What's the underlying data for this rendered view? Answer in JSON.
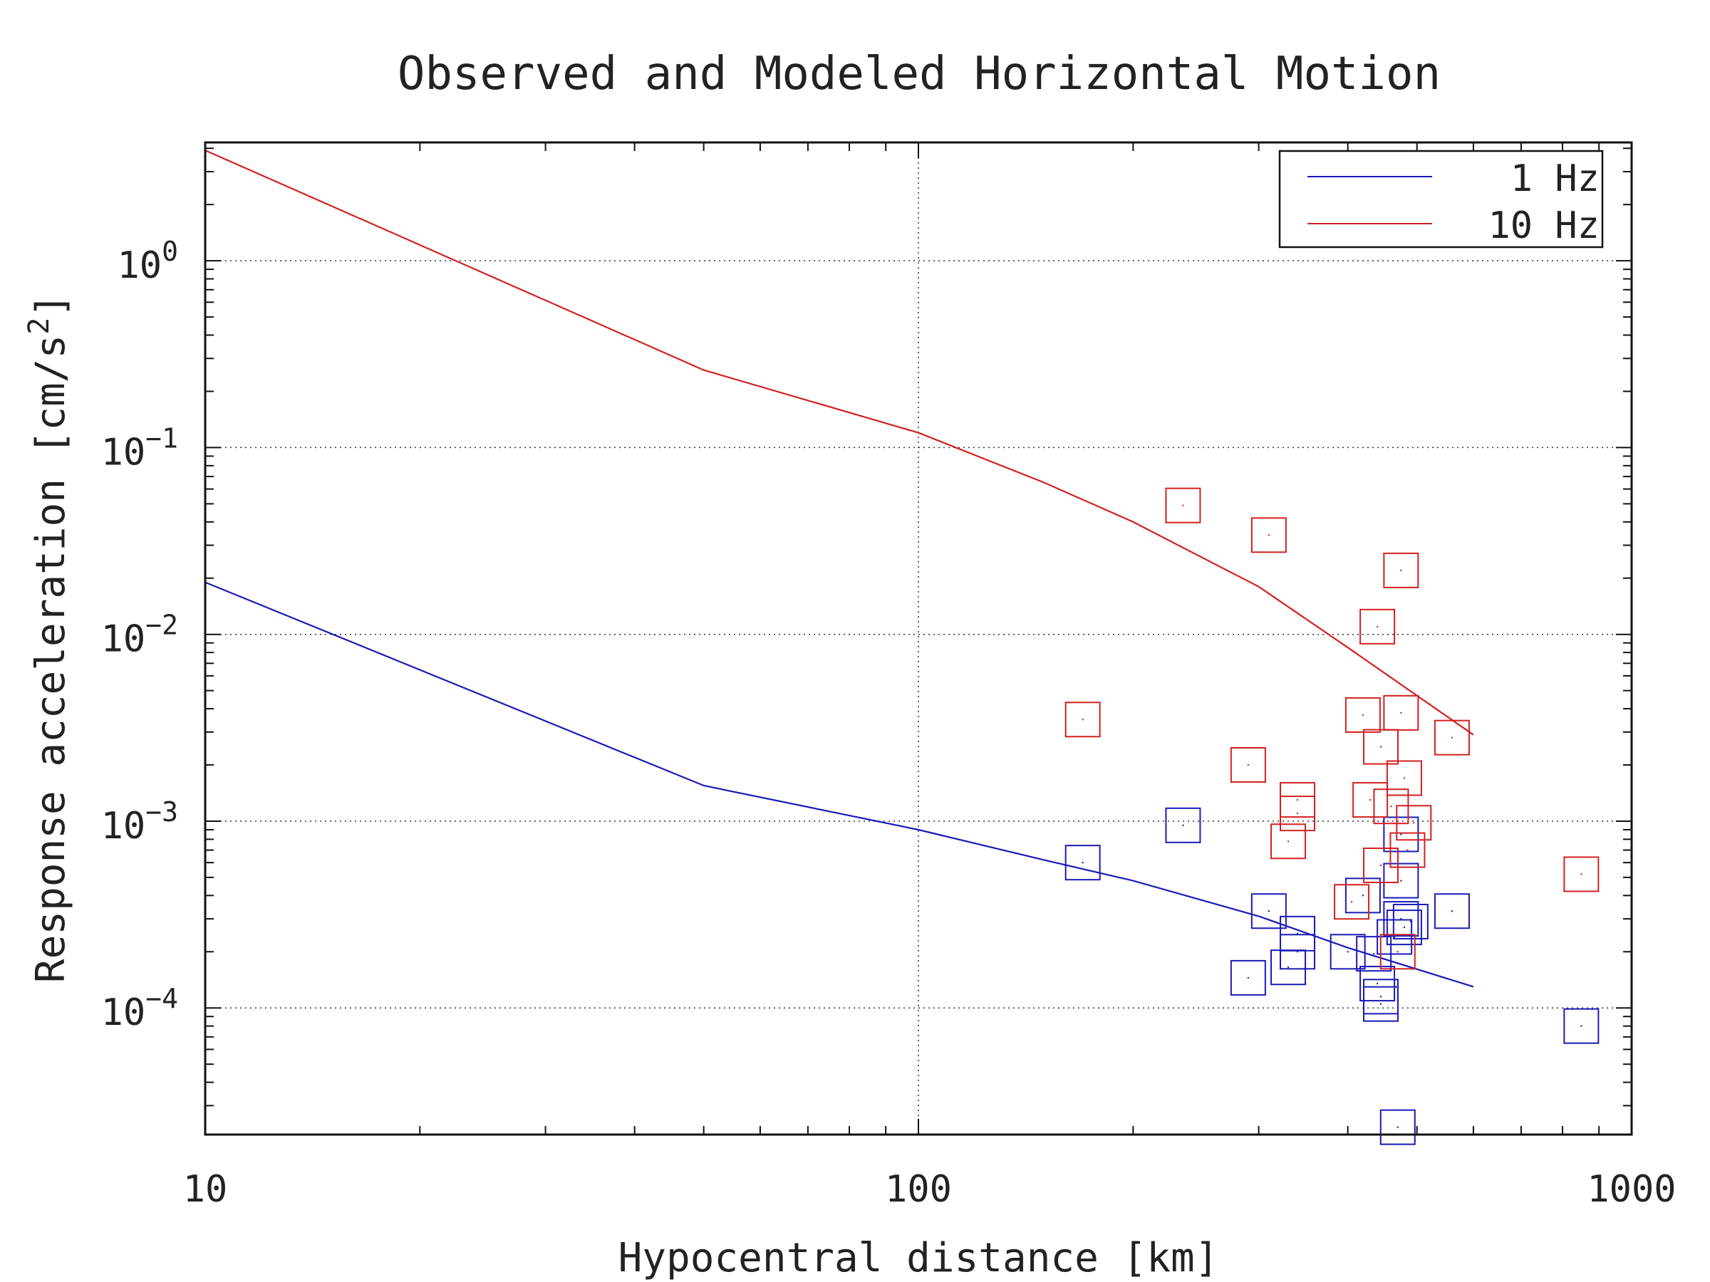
{
  "chart_data": {
    "type": "scatter",
    "title": "Observed and Modeled Horizontal Motion",
    "xlabel": "Hypocentral distance [km]",
    "ylabel_prefix": "Response acceleration [cm/s",
    "ylabel_sup": "2",
    "ylabel_suffix": "]",
    "x_scale": "log",
    "y_scale": "log",
    "xlim": [
      10,
      1000
    ],
    "ylim": [
      2.1e-05,
      4.3
    ],
    "grid": true,
    "legend_position": "top-right",
    "x_ticks": [
      {
        "value": 10,
        "label": "10"
      },
      {
        "value": 100,
        "label": "100"
      },
      {
        "value": 1000,
        "label": "1000"
      }
    ],
    "y_ticks": [
      {
        "value": 1,
        "base": "10",
        "exp": "0"
      },
      {
        "value": 0.1,
        "base": "10",
        "exp": "−1"
      },
      {
        "value": 0.01,
        "base": "10",
        "exp": "−2"
      },
      {
        "value": 0.001,
        "base": "10",
        "exp": "−3"
      },
      {
        "value": 0.0001,
        "base": "10",
        "exp": "−4"
      }
    ],
    "series": [
      {
        "name": "1 Hz",
        "color": "#1a1ab8",
        "model_line": [
          [
            10,
            0.019
          ],
          [
            50,
            0.00155
          ],
          [
            100,
            0.0009
          ],
          [
            150,
            0.00062
          ],
          [
            200,
            0.00048
          ],
          [
            300,
            0.00031
          ],
          [
            400,
            0.00021
          ],
          [
            600,
            0.00013
          ]
        ],
        "observed": [
          [
            170,
            0.0006
          ],
          [
            235,
            0.00095
          ],
          [
            290,
            0.000145
          ],
          [
            310,
            0.00033
          ],
          [
            330,
            0.000165
          ],
          [
            340,
            0.00025
          ],
          [
            340,
            0.0002
          ],
          [
            400,
            0.0002
          ],
          [
            420,
            0.0004
          ],
          [
            435,
            0.000195
          ],
          [
            440,
            0.000135
          ],
          [
            445,
            0.000115
          ],
          [
            445,
            0.000105
          ],
          [
            470,
            2.3e-05
          ],
          [
            465,
            0.00024
          ],
          [
            475,
            0.00085
          ],
          [
            475,
            0.00048
          ],
          [
            475,
            0.0003
          ],
          [
            480,
            0.00027
          ],
          [
            490,
            0.00029
          ],
          [
            560,
            0.00033
          ],
          [
            850,
            8e-05
          ]
        ]
      },
      {
        "name": "10 Hz",
        "color": "#d42020",
        "model_line": [
          [
            10,
            3.9
          ],
          [
            50,
            0.26
          ],
          [
            100,
            0.12
          ],
          [
            150,
            0.065
          ],
          [
            200,
            0.04
          ],
          [
            300,
            0.018
          ],
          [
            400,
            0.0085
          ],
          [
            500,
            0.0047
          ],
          [
            600,
            0.0029
          ]
        ],
        "observed": [
          [
            170,
            0.0035
          ],
          [
            235,
            0.049
          ],
          [
            290,
            0.002
          ],
          [
            310,
            0.034
          ],
          [
            330,
            0.00078
          ],
          [
            340,
            0.0013
          ],
          [
            340,
            0.0011
          ],
          [
            405,
            0.00037
          ],
          [
            420,
            0.0037
          ],
          [
            430,
            0.0013
          ],
          [
            440,
            0.011
          ],
          [
            445,
            0.00058
          ],
          [
            445,
            0.0025
          ],
          [
            460,
            0.0012
          ],
          [
            470,
            0.0002
          ],
          [
            475,
            0.022
          ],
          [
            475,
            0.0038
          ],
          [
            480,
            0.0017
          ],
          [
            485,
            0.0007
          ],
          [
            495,
            0.00098
          ],
          [
            560,
            0.0028
          ],
          [
            850,
            0.00052
          ]
        ]
      }
    ]
  }
}
